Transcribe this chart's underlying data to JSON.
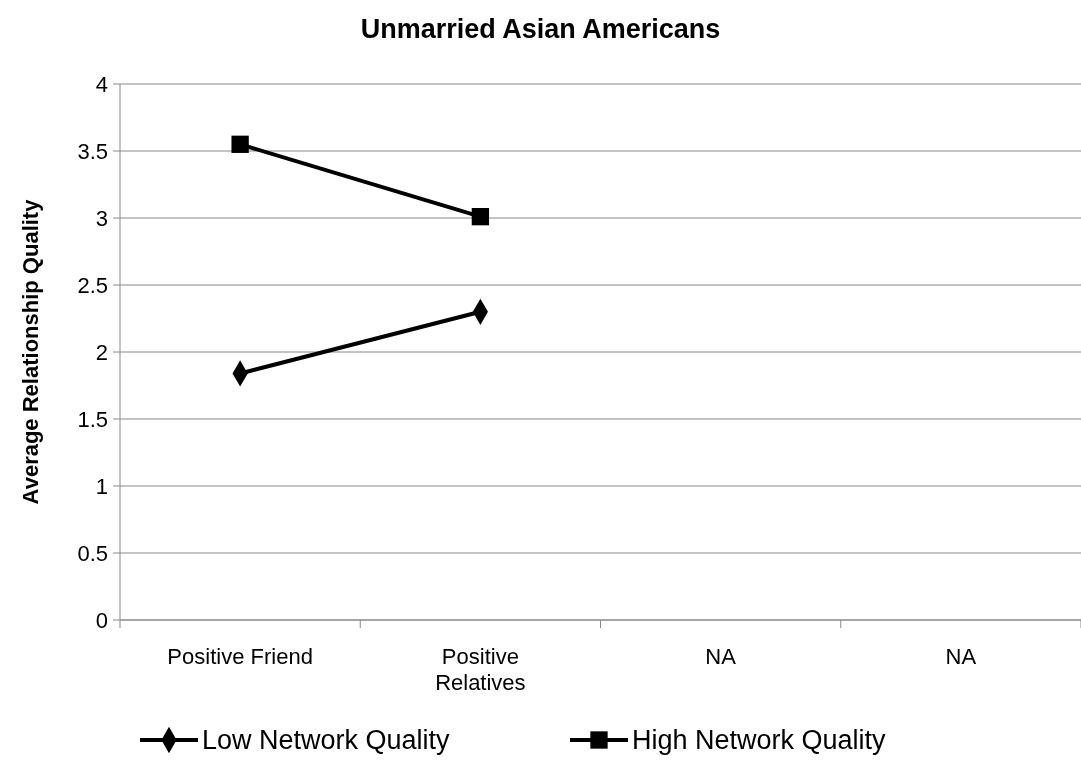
{
  "chart_data": {
    "type": "line",
    "title": "Unmarried Asian Americans",
    "ylabel": "Average Relationship Quality",
    "categories": [
      "Positive Friend",
      "Positive Relatives",
      "NA",
      "NA"
    ],
    "series": [
      {
        "name": "Low Network Quality",
        "color": "#000000",
        "marker": "diamond",
        "values": [
          1.84,
          2.3,
          null,
          null
        ]
      },
      {
        "name": "High Network Quality",
        "color": "#000000",
        "marker": "square",
        "values": [
          3.55,
          3.01,
          null,
          null
        ]
      }
    ],
    "ylim": [
      0,
      4
    ],
    "yticks": [
      0,
      0.5,
      1,
      1.5,
      2,
      2.5,
      3,
      3.5,
      4
    ],
    "grid": "y",
    "legend": "bottom",
    "line_style": "solid"
  }
}
